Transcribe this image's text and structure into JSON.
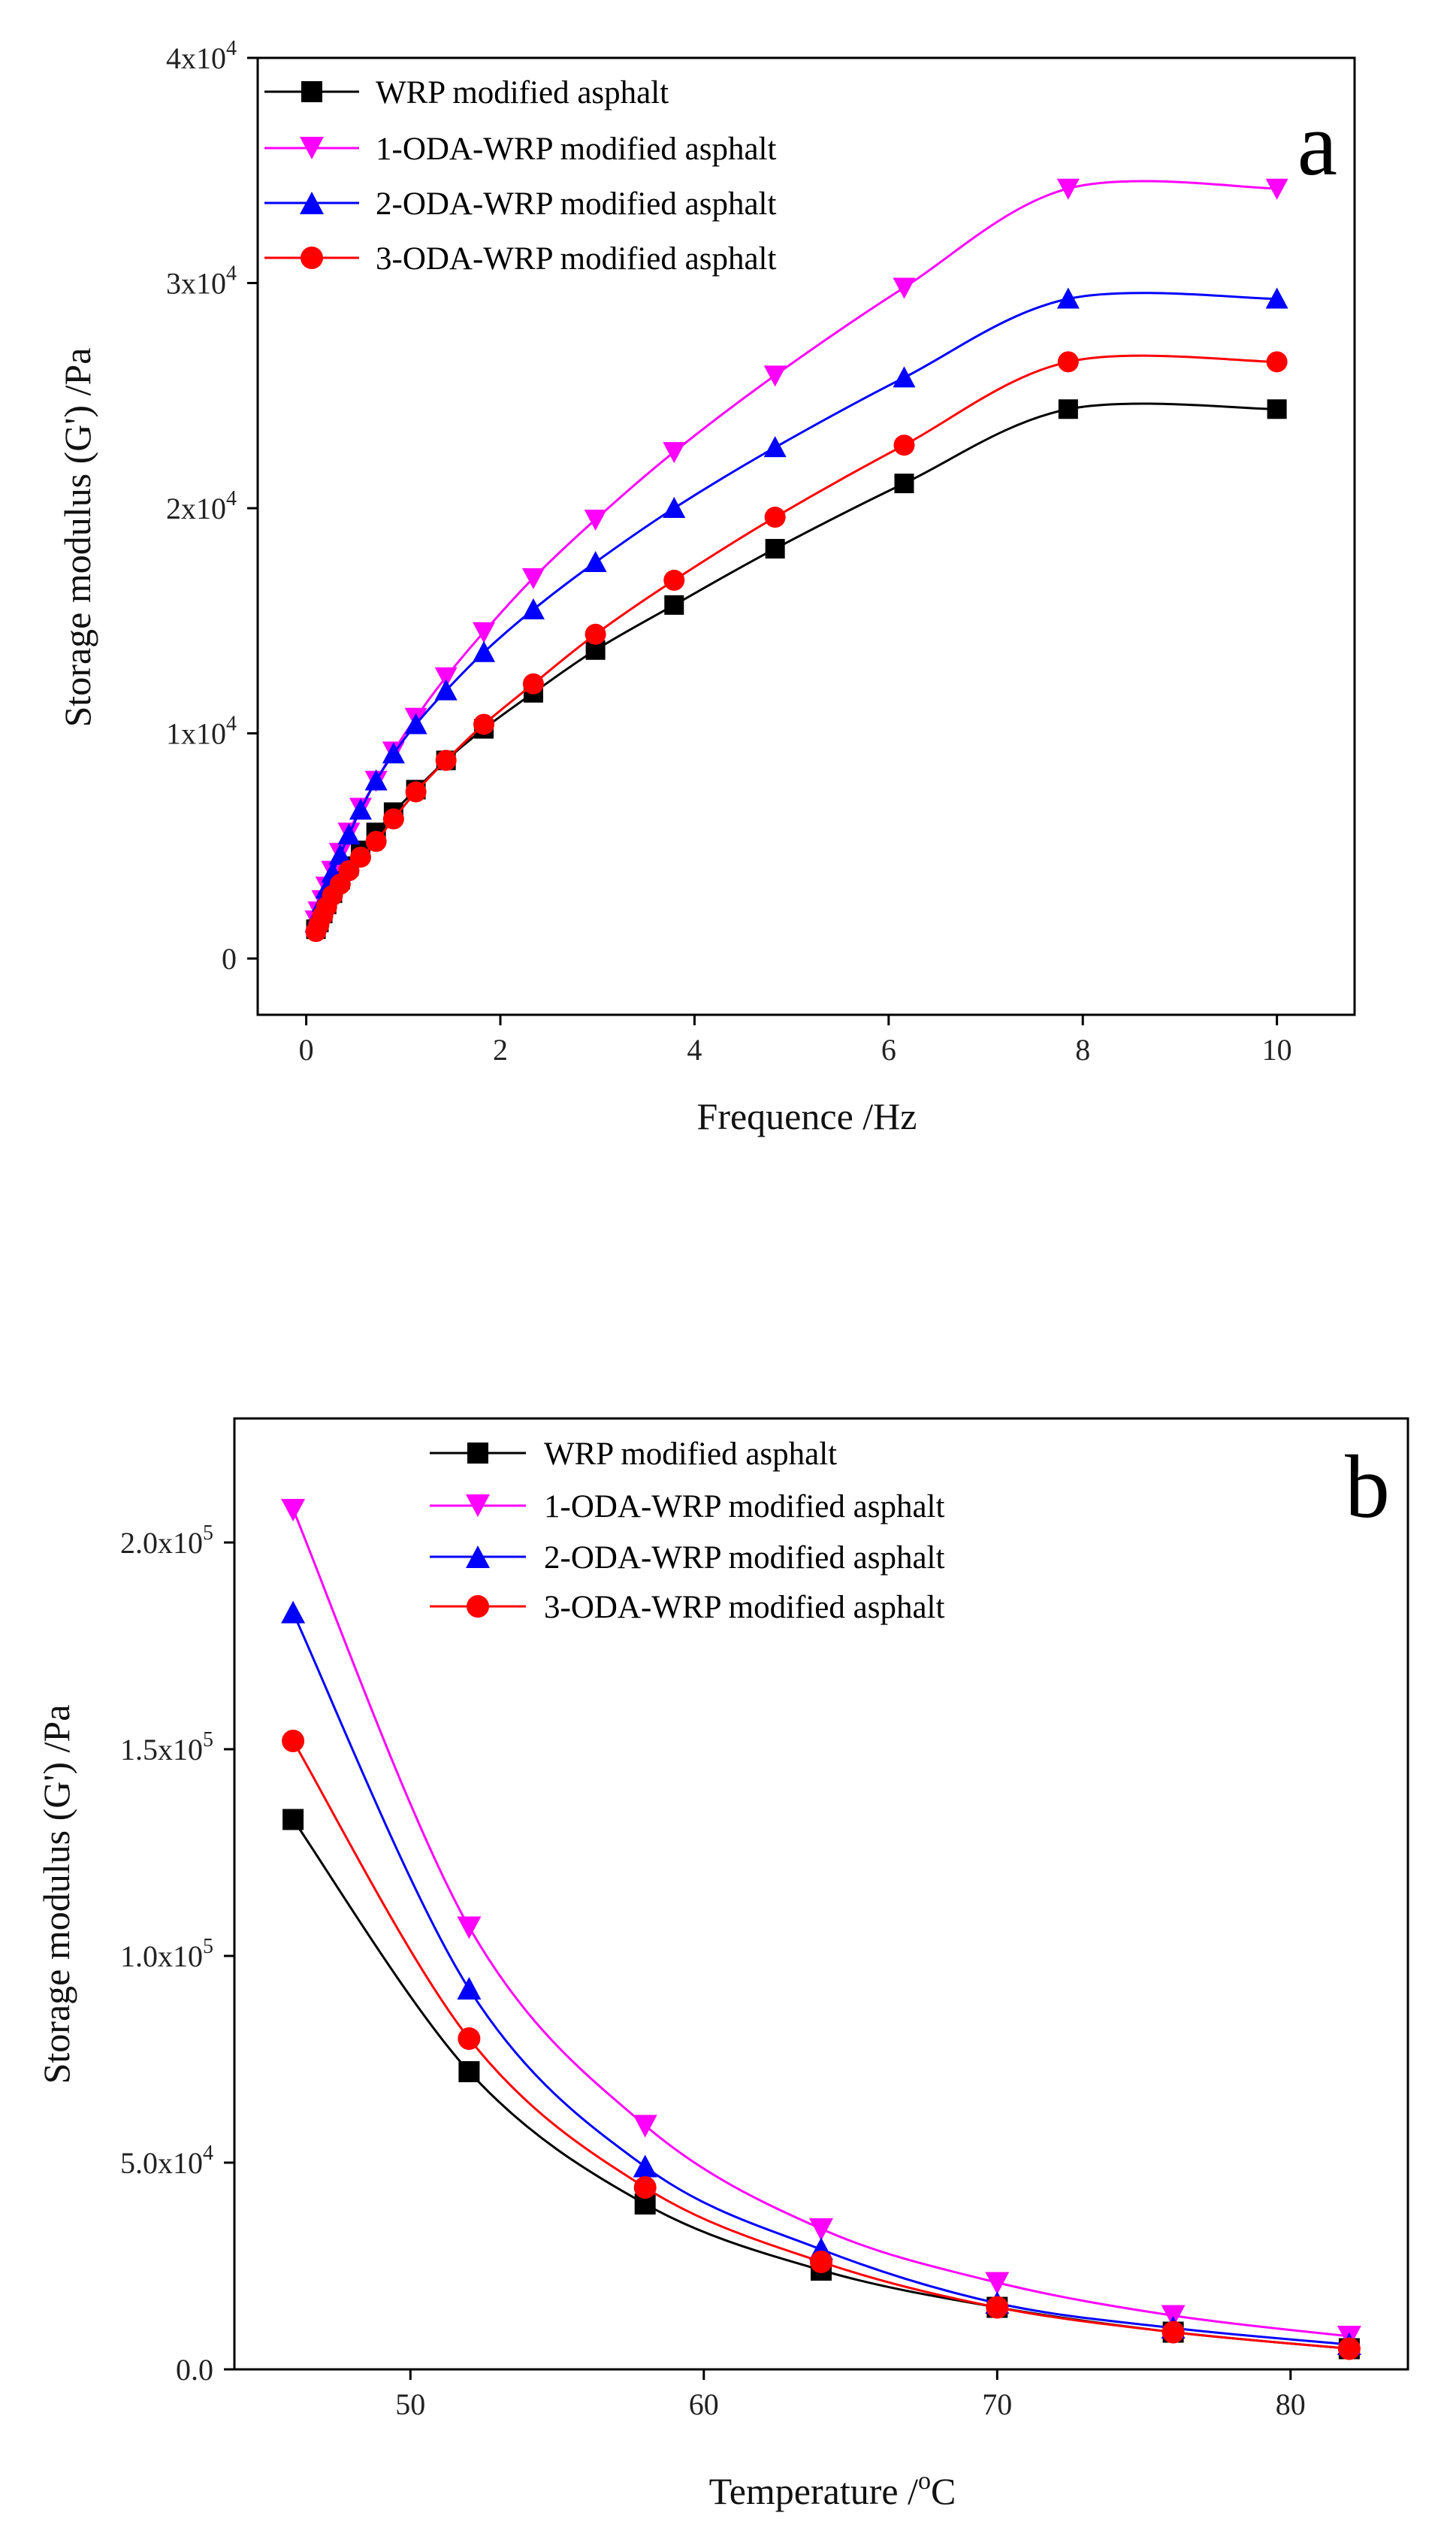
{
  "chart_data": [
    {
      "type": "line",
      "panel_label": "a",
      "xlabel": "Frequence /Hz",
      "ylabel": "Storage modulus (G') /Pa",
      "xlim": [
        -0.5,
        10.8
      ],
      "ylim": [
        -2500,
        40000
      ],
      "xticks": [
        0,
        2,
        4,
        6,
        8,
        10
      ],
      "xtick_labels": [
        "0",
        "2",
        "4",
        "6",
        "8",
        "10"
      ],
      "yticks": [
        0,
        10000,
        20000,
        30000,
        40000
      ],
      "ytick_labels": [
        {
          "base": "0",
          "exp": ""
        },
        {
          "base": "1x10",
          "exp": "4"
        },
        {
          "base": "2x10",
          "exp": "4"
        },
        {
          "base": "3x10",
          "exp": "4"
        },
        {
          "base": "4x10",
          "exp": "4"
        }
      ],
      "x": [
        0.1,
        0.13,
        0.17,
        0.21,
        0.27,
        0.35,
        0.44,
        0.56,
        0.72,
        0.9,
        1.13,
        1.44,
        1.83,
        2.34,
        2.98,
        3.79,
        4.83,
        6.16,
        7.85,
        10.0
      ],
      "legend_position": "top-left",
      "series": [
        {
          "name": "WRP modified asphalt",
          "marker": "square",
          "color": "#000000",
          "values": [
            1300,
            1600,
            2000,
            2400,
            2900,
            3500,
            4100,
            4800,
            5600,
            6500,
            7500,
            8800,
            10200,
            11800,
            13700,
            15700,
            18200,
            21100,
            24400,
            24400
          ]
        },
        {
          "name": "1-ODA-WRP modified asphalt",
          "marker": "triangle-down",
          "color": "#ff00ff",
          "values": [
            1700,
            2100,
            2600,
            3200,
            3900,
            4700,
            5600,
            6700,
            7900,
            9200,
            10700,
            12500,
            14500,
            16900,
            19500,
            22500,
            25900,
            29800,
            34200,
            34200
          ]
        },
        {
          "name": "2-ODA-WRP modified asphalt",
          "marker": "triangle-up",
          "color": "#0000ff",
          "values": [
            1600,
            2000,
            2500,
            3100,
            3800,
            4600,
            5500,
            6600,
            7900,
            9100,
            10400,
            11900,
            13600,
            15500,
            17600,
            20000,
            22700,
            25800,
            29300,
            29300
          ]
        },
        {
          "name": "3-ODA-WRP modified asphalt",
          "marker": "circle",
          "color": "#ff0000",
          "values": [
            1200,
            1500,
            1900,
            2300,
            2800,
            3300,
            3900,
            4500,
            5200,
            6200,
            7400,
            8800,
            10400,
            12200,
            14400,
            16800,
            19600,
            22800,
            26500,
            26500
          ]
        }
      ]
    },
    {
      "type": "line",
      "panel_label": "b",
      "xlabel": "Temperature /",
      "xlabel_sup": "o",
      "xlabel_tail": "C",
      "ylabel": "Storage modulus (G') /Pa",
      "xlim": [
        44,
        84
      ],
      "ylim": [
        0,
        230000
      ],
      "xticks": [
        50,
        60,
        70,
        80
      ],
      "xtick_labels": [
        "50",
        "60",
        "70",
        "80"
      ],
      "yticks": [
        0,
        50000,
        100000,
        150000,
        200000
      ],
      "ytick_labels": [
        {
          "base": "0.0",
          "exp": ""
        },
        {
          "base": "5.0x10",
          "exp": "4"
        },
        {
          "base": "1.0x10",
          "exp": "5"
        },
        {
          "base": "1.5x10",
          "exp": "5"
        },
        {
          "base": "2.0x10",
          "exp": "5"
        }
      ],
      "x": [
        46,
        52,
        58,
        64,
        70,
        76,
        82
      ],
      "legend_position": "top-center",
      "series": [
        {
          "name": "WRP modified asphalt",
          "marker": "square",
          "color": "#000000",
          "values": [
            133000,
            72000,
            40000,
            24000,
            15000,
            9000,
            5000
          ]
        },
        {
          "name": "1-ODA-WRP modified asphalt",
          "marker": "triangle-down",
          "color": "#ff00ff",
          "values": [
            208000,
            107000,
            59000,
            34000,
            21000,
            13000,
            8000
          ]
        },
        {
          "name": "2-ODA-WRP modified asphalt",
          "marker": "triangle-up",
          "color": "#0000ff",
          "values": [
            183000,
            92000,
            49000,
            29000,
            16000,
            10000,
            6000
          ]
        },
        {
          "name": "3-ODA-WRP modified asphalt",
          "marker": "circle",
          "color": "#ff0000",
          "values": [
            152000,
            80000,
            44000,
            26000,
            15000,
            9000,
            5000
          ]
        }
      ]
    }
  ]
}
